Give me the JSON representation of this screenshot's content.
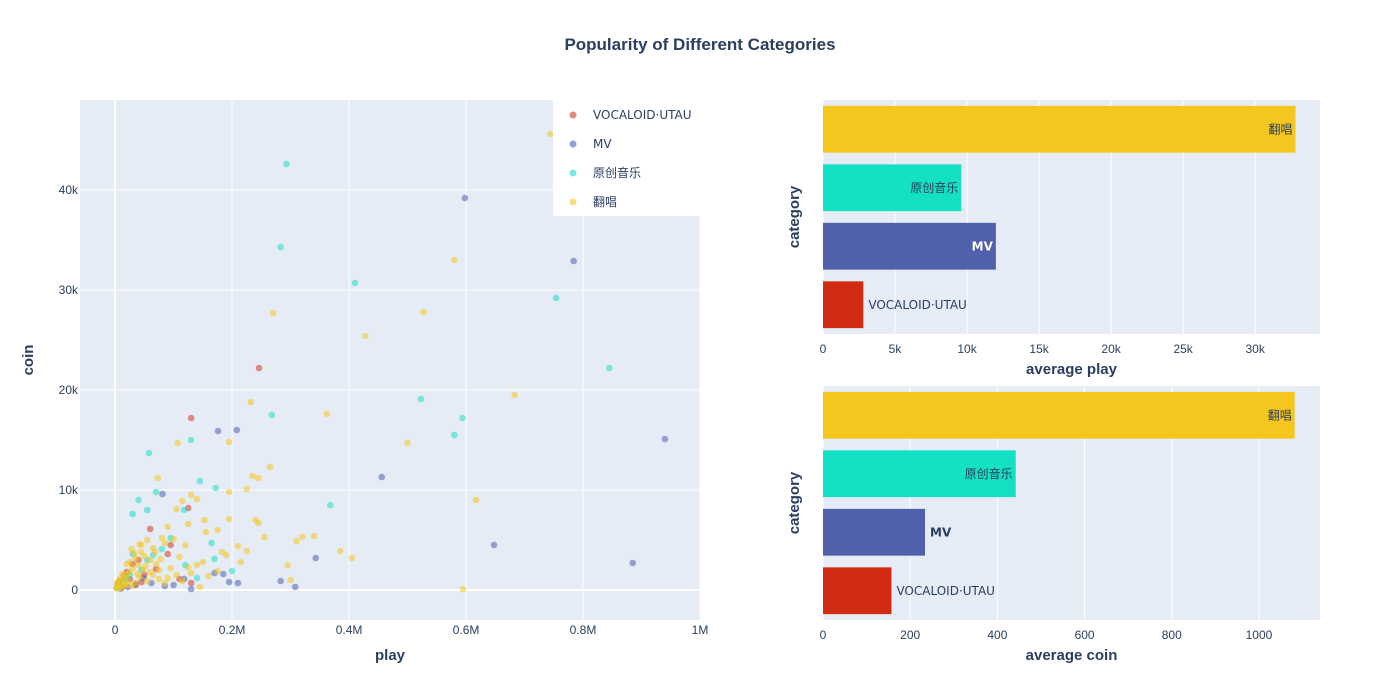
{
  "chart_data": [
    {
      "type": "scatter",
      "title": "Popularity of Different Categories",
      "xlabel": "play",
      "ylabel": "coin",
      "xlim": [
        -60000,
        1000000
      ],
      "ylim": [
        -3000,
        49000
      ],
      "x_ticks": [
        {
          "value": 0,
          "label": "0"
        },
        {
          "value": 200000,
          "label": "0.2M"
        },
        {
          "value": 400000,
          "label": "0.4M"
        },
        {
          "value": 600000,
          "label": "0.6M"
        },
        {
          "value": 800000,
          "label": "0.8M"
        },
        {
          "value": 1000000,
          "label": "1M"
        }
      ],
      "y_ticks": [
        {
          "value": 0,
          "label": "0"
        },
        {
          "value": 10000,
          "label": "10k"
        },
        {
          "value": 20000,
          "label": "20k"
        },
        {
          "value": 30000,
          "label": "30k"
        },
        {
          "value": 40000,
          "label": "40k"
        }
      ],
      "legend_position": "top-right",
      "grid": true,
      "series": [
        {
          "name": "VOCALOID·UTAU",
          "color": "#d43a24",
          "points": [
            [
              246000,
              22200
            ],
            [
              130000,
              17200
            ],
            [
              125000,
              8200
            ],
            [
              60000,
              6100
            ],
            [
              95000,
              4500
            ],
            [
              90000,
              3600
            ],
            [
              40000,
              3000
            ],
            [
              30000,
              2600
            ],
            [
              20000,
              1800
            ],
            [
              15000,
              1400
            ],
            [
              8000,
              900
            ],
            [
              5000,
              600
            ],
            [
              70000,
              2100
            ],
            [
              50000,
              1500
            ],
            [
              110000,
              1100
            ],
            [
              130000,
              700
            ],
            [
              25000,
              1100
            ],
            [
              45000,
              800
            ],
            [
              35000,
              500
            ],
            [
              12000,
              300
            ]
          ]
        },
        {
          "name": "MV",
          "color": "#5260b0",
          "points": [
            [
              598000,
              39200
            ],
            [
              784000,
              32900
            ],
            [
              940000,
              15100
            ],
            [
              208000,
              16000
            ],
            [
              176000,
              15900
            ],
            [
              456000,
              11300
            ],
            [
              81000,
              9600
            ],
            [
              648000,
              4500
            ],
            [
              885000,
              2700
            ],
            [
              343000,
              3200
            ],
            [
              308000,
              300
            ],
            [
              283000,
              900
            ],
            [
              195000,
              800
            ],
            [
              210000,
              700
            ],
            [
              185000,
              1600
            ],
            [
              170000,
              1700
            ],
            [
              130000,
              100
            ],
            [
              118000,
              1100
            ],
            [
              100000,
              500
            ],
            [
              85000,
              400
            ],
            [
              62000,
              700
            ],
            [
              48000,
              1200
            ],
            [
              35000,
              600
            ],
            [
              22000,
              300
            ],
            [
              10000,
              150
            ]
          ]
        },
        {
          "name": "原创音乐",
          "color": "#1ee0c4",
          "points": [
            [
              293000,
              42600
            ],
            [
              283000,
              34300
            ],
            [
              410000,
              30700
            ],
            [
              754000,
              29200
            ],
            [
              845000,
              22200
            ],
            [
              523000,
              19100
            ],
            [
              268000,
              17500
            ],
            [
              594000,
              17200
            ],
            [
              580000,
              15500
            ],
            [
              130000,
              15000
            ],
            [
              58000,
              13700
            ],
            [
              145000,
              10900
            ],
            [
              172000,
              10200
            ],
            [
              368000,
              8500
            ],
            [
              70000,
              9800
            ],
            [
              40000,
              9000
            ],
            [
              55000,
              8000
            ],
            [
              30000,
              7600
            ],
            [
              118000,
              8000
            ],
            [
              165000,
              4700
            ],
            [
              95000,
              5200
            ],
            [
              80000,
              4100
            ],
            [
              170000,
              3100
            ],
            [
              65000,
              3500
            ],
            [
              55000,
              3000
            ],
            [
              45000,
              2000
            ],
            [
              25000,
              1500
            ],
            [
              15000,
              800
            ],
            [
              8000,
              400
            ],
            [
              3000,
              200
            ],
            [
              120000,
              2500
            ],
            [
              200000,
              1900
            ],
            [
              140000,
              1200
            ],
            [
              30000,
              3600
            ],
            [
              18000,
              1200
            ],
            [
              6000,
              500
            ]
          ]
        },
        {
          "name": "翻唱",
          "color": "#f5c71e",
          "points": [
            [
              744000,
              45600
            ],
            [
              580000,
              33000
            ],
            [
              270000,
              27700
            ],
            [
              527000,
              27800
            ],
            [
              428000,
              25400
            ],
            [
              683000,
              19500
            ],
            [
              232000,
              18800
            ],
            [
              362000,
              17600
            ],
            [
              195000,
              14800
            ],
            [
              107000,
              14700
            ],
            [
              265000,
              12300
            ],
            [
              235000,
              11400
            ],
            [
              245000,
              11200
            ],
            [
              225000,
              10100
            ],
            [
              73000,
              11200
            ],
            [
              195000,
              9800
            ],
            [
              130000,
              9500
            ],
            [
              115000,
              8900
            ],
            [
              140000,
              9100
            ],
            [
              617000,
              9000
            ],
            [
              105000,
              8100
            ],
            [
              195000,
              7100
            ],
            [
              240000,
              7000
            ],
            [
              245000,
              6700
            ],
            [
              153000,
              7000
            ],
            [
              125000,
              6600
            ],
            [
              175000,
              6000
            ],
            [
              90000,
              6300
            ],
            [
              155000,
              5800
            ],
            [
              80000,
              5200
            ],
            [
              210000,
              4400
            ],
            [
              225000,
              3900
            ],
            [
              255000,
              5300
            ],
            [
              320000,
              5300
            ],
            [
              310000,
              4900
            ],
            [
              340000,
              5400
            ],
            [
              385000,
              3900
            ],
            [
              405000,
              3200
            ],
            [
              500000,
              14700
            ],
            [
              183000,
              3800
            ],
            [
              120000,
              4500
            ],
            [
              85000,
              4700
            ],
            [
              100000,
              5100
            ],
            [
              55000,
              5000
            ],
            [
              65000,
              4200
            ],
            [
              45000,
              4500
            ],
            [
              50000,
              3400
            ],
            [
              35000,
              3200
            ],
            [
              60000,
              3000
            ],
            [
              70000,
              2600
            ],
            [
              75000,
              2000
            ],
            [
              95000,
              2200
            ],
            [
              130000,
              1700
            ],
            [
              140000,
              2500
            ],
            [
              160000,
              1400
            ],
            [
              145000,
              300
            ],
            [
              295000,
              2500
            ],
            [
              300000,
              1000
            ],
            [
              595000,
              100
            ],
            [
              40000,
              2500
            ],
            [
              30000,
              2200
            ],
            [
              25000,
              1800
            ],
            [
              20000,
              1500
            ],
            [
              15000,
              1200
            ],
            [
              10000,
              900
            ],
            [
              5000,
              500
            ],
            [
              2000,
              200
            ],
            [
              42000,
              1300
            ],
            [
              55000,
              900
            ],
            [
              35000,
              700
            ],
            [
              28000,
              400
            ],
            [
              18000,
              600
            ],
            [
              12000,
              350
            ],
            [
              8000,
              250
            ],
            [
              4000,
              150
            ],
            [
              65000,
              1500
            ],
            [
              75000,
              1100
            ],
            [
              85000,
              700
            ],
            [
              105000,
              1500
            ],
            [
              115000,
              900
            ],
            [
              48000,
              2000
            ],
            [
              38000,
              1600
            ],
            [
              22000,
              900
            ],
            [
              16000,
              500
            ],
            [
              25000,
              2800
            ],
            [
              32000,
              3700
            ],
            [
              60000,
              1800
            ],
            [
              90000,
              1200
            ],
            [
              110000,
              3300
            ],
            [
              125000,
              2300
            ],
            [
              150000,
              2800
            ],
            [
              175000,
              1900
            ],
            [
              190000,
              3500
            ],
            [
              215000,
              2800
            ],
            [
              20000,
              2600
            ],
            [
              28000,
              4100
            ],
            [
              42000,
              4600
            ],
            [
              44000,
              3800
            ],
            [
              52000,
              2400
            ],
            [
              68000,
              3800
            ],
            [
              78000,
              3100
            ],
            [
              12000,
              1600
            ],
            [
              8000,
              1100
            ],
            [
              3000,
              700
            ]
          ]
        }
      ]
    },
    {
      "type": "bar",
      "orientation": "horizontal",
      "xlabel": "average play",
      "ylabel": "category",
      "xlim": [
        0,
        34500
      ],
      "x_ticks": [
        {
          "value": 0,
          "label": "0"
        },
        {
          "value": 5000,
          "label": "5k"
        },
        {
          "value": 10000,
          "label": "10k"
        },
        {
          "value": 15000,
          "label": "15k"
        },
        {
          "value": 20000,
          "label": "20k"
        },
        {
          "value": 25000,
          "label": "25k"
        },
        {
          "value": 30000,
          "label": "30k"
        }
      ],
      "categories": [
        "翻唱",
        "原创音乐",
        "MV",
        "VOCALOID·UTAU"
      ],
      "values": [
        32800,
        9600,
        12000,
        2800
      ],
      "colors": [
        "#f5c71e",
        "#14e0c4",
        "#5060ab",
        "#d22b13"
      ],
      "label_color": [
        "#2a3f5f",
        "#2a3f5f",
        "#ffffff",
        "#2a3f5f"
      ]
    },
    {
      "type": "bar",
      "orientation": "horizontal",
      "xlabel": "average coin",
      "ylabel": "category",
      "xlim": [
        0,
        1140
      ],
      "x_ticks": [
        {
          "value": 0,
          "label": "0"
        },
        {
          "value": 200,
          "label": "200"
        },
        {
          "value": 400,
          "label": "400"
        },
        {
          "value": 600,
          "label": "600"
        },
        {
          "value": 800,
          "label": "800"
        },
        {
          "value": 1000,
          "label": "1000"
        }
      ],
      "categories": [
        "翻唱",
        "原创音乐",
        "MV",
        "VOCALOID·UTAU"
      ],
      "values": [
        1082,
        442,
        234,
        157
      ],
      "colors": [
        "#f5c71e",
        "#14e0c4",
        "#5060ab",
        "#d22b13"
      ],
      "label_color": [
        "#2a3f5f",
        "#2a3f5f",
        "#ffffff",
        "#2a3f5f"
      ]
    }
  ]
}
